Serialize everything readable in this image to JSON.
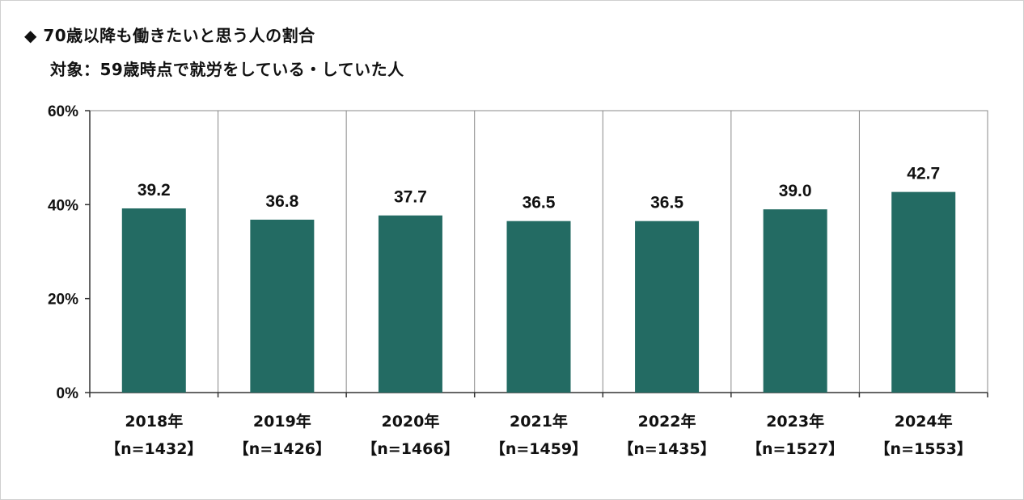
{
  "chart_data": {
    "type": "bar",
    "title": "◆ 70歳以降も働きたいと思う人の割合",
    "subtitle": "対象：59歳時点で就労をしている・していた人",
    "categories": [
      "2018年",
      "2019年",
      "2020年",
      "2021年",
      "2022年",
      "2023年",
      "2024年"
    ],
    "sample_sizes": [
      "【n=1432】",
      "【n=1426】",
      "【n=1466】",
      "【n=1459】",
      "【n=1435】",
      "【n=1527】",
      "【n=1553】"
    ],
    "values": [
      39.2,
      36.8,
      37.7,
      36.5,
      36.5,
      39.0,
      42.7
    ],
    "value_labels": [
      "39.2",
      "36.8",
      "37.7",
      "36.5",
      "36.5",
      "39.0",
      "42.7"
    ],
    "ylim": [
      0,
      60
    ],
    "yticks": [
      0,
      20,
      40,
      60
    ],
    "ytick_labels": [
      "0%",
      "20%",
      "40%",
      "60%"
    ],
    "bar_color": "#236b63",
    "grid": "vertical separators between categories",
    "legend": "none"
  }
}
